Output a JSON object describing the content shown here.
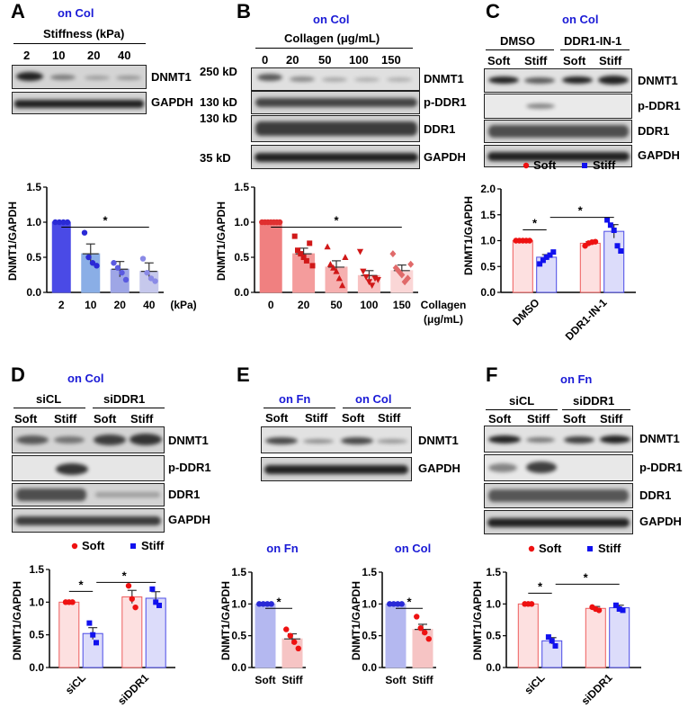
{
  "panels": {
    "A": {
      "letter": "A",
      "cond": "on Col",
      "header": "Stiffness (kPa)",
      "lanes": [
        "2",
        "10",
        "20",
        "40"
      ],
      "rows": [
        "DNMT1",
        "GAPDH"
      ]
    },
    "B": {
      "letter": "B",
      "cond": "on Col",
      "header": "Collagen (μg/mL)",
      "lanes": [
        "0",
        "20",
        "50",
        "100",
        "150"
      ],
      "rows": [
        "DNMT1",
        "p-DDR1",
        "DDR1",
        "GAPDH"
      ],
      "mw": [
        "250 kD",
        "130 kD",
        "130 kD",
        "35 kD"
      ]
    },
    "C": {
      "letter": "C",
      "cond": "on Col",
      "groups": [
        "DMSO",
        "DDR1-IN-1"
      ],
      "lanes": [
        "Soft",
        "Stiff",
        "Soft",
        "Stiff"
      ],
      "rows": [
        "DNMT1",
        "p-DDR1",
        "DDR1",
        "GAPDH"
      ]
    },
    "D": {
      "letter": "D",
      "cond": "on Col",
      "groups": [
        "siCL",
        "siDDR1"
      ],
      "lanes": [
        "Soft",
        "Stiff",
        "Soft",
        "Stiff"
      ],
      "rows": [
        "DNMT1",
        "p-DDR1",
        "DDR1",
        "GAPDH"
      ]
    },
    "E": {
      "letter": "E",
      "groups": [
        "on Fn",
        "on Col"
      ],
      "lanes": [
        "Soft",
        "Stiff",
        "Soft",
        "Stiff"
      ],
      "rows": [
        "DNMT1",
        "GAPDH"
      ]
    },
    "F": {
      "letter": "F",
      "cond": "on Fn",
      "groups": [
        "siCL",
        "siDDR1"
      ],
      "lanes": [
        "Soft",
        "Stiff",
        "Soft",
        "Stiff"
      ],
      "rows": [
        "DNMT1",
        "p-DDR1",
        "DDR1",
        "GAPDH"
      ]
    }
  },
  "chart_data": [
    {
      "id": "A",
      "type": "bar",
      "categories": [
        "2",
        "10",
        "20",
        "40"
      ],
      "values": [
        1.0,
        0.55,
        0.33,
        0.3
      ],
      "errors": [
        0,
        0.14,
        0.11,
        0.12
      ],
      "points": [
        [
          1,
          1,
          1,
          1
        ],
        [
          0.85,
          0.5,
          0.42,
          0.38
        ],
        [
          0.42,
          0.35,
          0.28,
          0.18
        ],
        [
          0.48,
          0.28,
          0.2,
          0.16
        ]
      ],
      "ylabel": "DNMT1/GAPDH",
      "xlabel": "(kPa)",
      "ylim": [
        0,
        1.5
      ],
      "yticks": [
        "0.0",
        "0.5",
        "1.0",
        "1.5"
      ],
      "colors": [
        "#4a4ae6",
        "#8aaee6",
        "#9ea6e6",
        "#c6c8ec"
      ],
      "sig": "*"
    },
    {
      "id": "B",
      "type": "bar",
      "categories": [
        "0",
        "20",
        "50",
        "100",
        "150"
      ],
      "values": [
        1.0,
        0.55,
        0.36,
        0.24,
        0.31
      ],
      "errors": [
        0,
        0.08,
        0.09,
        0.07,
        0.08
      ],
      "points": [
        [
          1,
          1,
          1,
          1,
          1,
          1,
          1
        ],
        [
          0.8,
          0.6,
          0.55,
          0.5,
          0.45,
          0.7,
          0.38
        ],
        [
          0.65,
          0.4,
          0.35,
          0.3,
          0.2,
          0.1,
          0.5
        ],
        [
          0.58,
          0.3,
          0.22,
          0.15,
          0.1,
          0.2,
          0.18
        ],
        [
          0.55,
          0.35,
          0.3,
          0.25,
          0.15,
          0.2,
          0.4
        ]
      ],
      "ylabel": "DNMT1/GAPDH",
      "xlabel": "Collagen",
      "xlabel2": "(μg/mL)",
      "ylim": [
        0,
        1.5
      ],
      "yticks": [
        "0.0",
        "0.5",
        "1.0",
        "1.5"
      ],
      "colors": [
        "#f08080",
        "#f49c9c",
        "#f6b0b0",
        "#f8c2c2",
        "#fad6d6"
      ],
      "sig": "*"
    },
    {
      "id": "C",
      "type": "bar",
      "categories": [
        "DMSO",
        "DDR1-IN-1"
      ],
      "series": [
        {
          "name": "Soft",
          "values": [
            1.0,
            0.95
          ],
          "errors": [
            0,
            0.03
          ],
          "points": [
            [
              1,
              1,
              1,
              1,
              1
            ],
            [
              0.9,
              0.95,
              0.97,
              0.98
            ]
          ]
        },
        {
          "name": "Stiff",
          "values": [
            0.68,
            1.18
          ],
          "errors": [
            0.05,
            0.13
          ],
          "points": [
            [
              0.55,
              0.62,
              0.68,
              0.72,
              0.78
            ],
            [
              1.4,
              1.3,
              1.2,
              0.9,
              0.8
            ]
          ]
        }
      ],
      "ylabel": "DNMT1/GAPDH",
      "ylim": [
        0,
        2.0
      ],
      "yticks": [
        "0.0",
        "0.5",
        "1.0",
        "1.5",
        "2.0"
      ],
      "sig": [
        "*",
        "*"
      ]
    },
    {
      "id": "D",
      "type": "bar",
      "categories": [
        "siCL",
        "siDDR1"
      ],
      "series": [
        {
          "name": "Soft",
          "values": [
            1.0,
            1.08
          ],
          "errors": [
            0,
            0.1
          ],
          "points": [
            [
              1,
              1,
              1
            ],
            [
              1.25,
              1.05,
              0.92
            ]
          ]
        },
        {
          "name": "Stiff",
          "values": [
            0.52,
            1.06
          ],
          "errors": [
            0.09,
            0.1
          ],
          "points": [
            [
              0.68,
              0.5,
              0.38
            ],
            [
              1.2,
              1.0,
              0.95
            ]
          ]
        }
      ],
      "ylabel": "DNMT1/GAPDH",
      "ylim": [
        0,
        1.5
      ],
      "yticks": [
        "0.0",
        "0.5",
        "1.0",
        "1.5"
      ],
      "sig": [
        "*",
        "*"
      ]
    },
    {
      "id": "E1",
      "type": "bar",
      "title": "on Fn",
      "categories": [
        "Soft",
        "Stiff"
      ],
      "values": [
        1.0,
        0.45
      ],
      "errors": [
        0,
        0.08
      ],
      "points": [
        [
          1,
          1,
          1,
          1
        ],
        [
          0.6,
          0.5,
          0.4,
          0.3
        ]
      ],
      "ylabel": "DNMT1/GAPDH",
      "ylim": [
        0,
        1.5
      ],
      "yticks": [
        "0.0",
        "0.5",
        "1.0",
        "1.5"
      ],
      "colors": [
        "#b4b8f0",
        "#f6c4c4"
      ],
      "sig": "*"
    },
    {
      "id": "E2",
      "type": "bar",
      "title": "on Col",
      "categories": [
        "Soft",
        "Stiff"
      ],
      "values": [
        1.0,
        0.6
      ],
      "errors": [
        0,
        0.08
      ],
      "points": [
        [
          1,
          1,
          1,
          1
        ],
        [
          0.8,
          0.62,
          0.55,
          0.45
        ]
      ],
      "ylabel": "DNMT1/GAPDH",
      "ylim": [
        0,
        1.5
      ],
      "yticks": [
        "0.0",
        "0.5",
        "1.0",
        "1.5"
      ],
      "colors": [
        "#b4b8f0",
        "#f6c4c4"
      ],
      "sig": "*"
    },
    {
      "id": "F",
      "type": "bar",
      "categories": [
        "siCL",
        "siDDR1"
      ],
      "series": [
        {
          "name": "Soft",
          "values": [
            1.0,
            0.93
          ],
          "errors": [
            0,
            0.03
          ],
          "points": [
            [
              1,
              1,
              1
            ],
            [
              0.95,
              0.92,
              0.9
            ]
          ]
        },
        {
          "name": "Stiff",
          "values": [
            0.42,
            0.94
          ],
          "errors": [
            0.05,
            0.04
          ],
          "points": [
            [
              0.48,
              0.42,
              0.34
            ],
            [
              0.98,
              0.92,
              0.9
            ]
          ]
        }
      ],
      "ylabel": "DNMT1/GAPDH",
      "ylim": [
        0,
        1.5
      ],
      "yticks": [
        "0.0",
        "0.5",
        "1.0",
        "1.5"
      ],
      "sig": [
        "*",
        "*"
      ]
    }
  ]
}
